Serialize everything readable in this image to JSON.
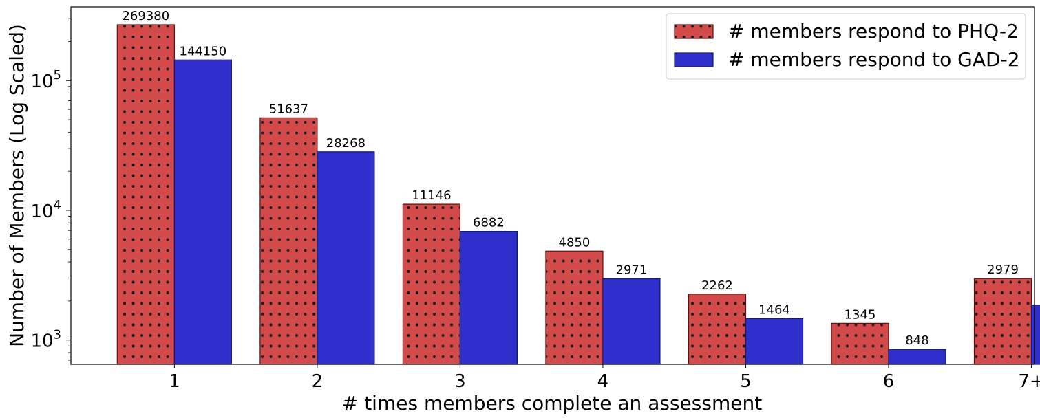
{
  "chart_data": {
    "type": "bar",
    "categories": [
      "1",
      "2",
      "3",
      "4",
      "5",
      "6",
      "7+"
    ],
    "series": [
      {
        "name": "# members respond to PHQ-2",
        "values": [
          269380,
          51637,
          11146,
          4850,
          2262,
          1345,
          2979
        ],
        "color": "#d24a4a",
        "hatch": "dots"
      },
      {
        "name": "# members respond to GAD-2",
        "values": [
          144150,
          28268,
          6882,
          2971,
          1464,
          848,
          1863
        ],
        "color": "#2f2fcc"
      }
    ],
    "xlabel": "# times members complete an assessment",
    "ylabel": "Number of Members (Log Scaled)",
    "yscale": "log",
    "ylim": [
      650,
      370000
    ],
    "yticks": [
      {
        "value": 1000,
        "base": "10",
        "exp": "3"
      },
      {
        "value": 10000,
        "base": "10",
        "exp": "4"
      },
      {
        "value": 100000,
        "base": "10",
        "exp": "5"
      }
    ],
    "legend_position": "top-right",
    "grid": false
  }
}
